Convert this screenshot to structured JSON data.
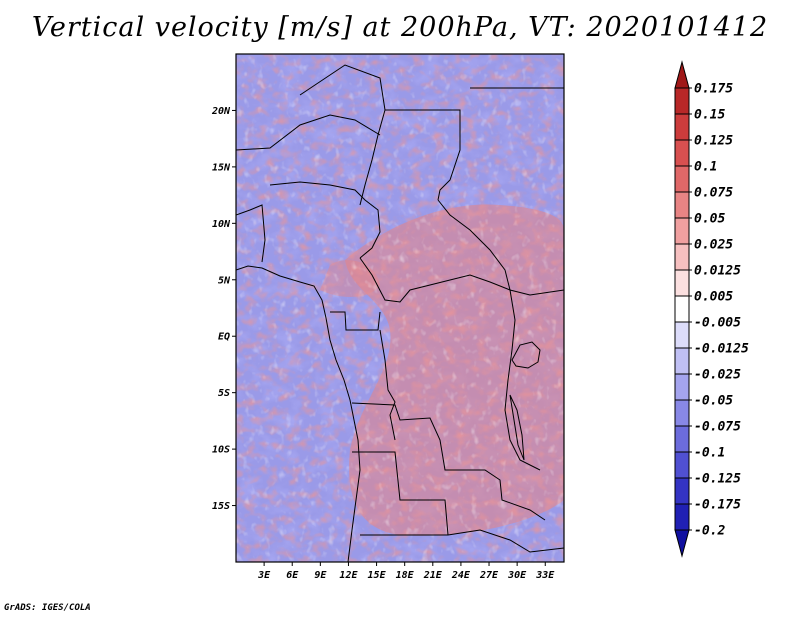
{
  "title": "Vertical velocity [m/s] at 200hPa, VT: 2020101412",
  "footer": "GrADS: IGES/COLA",
  "chart_data": {
    "type": "heatmap",
    "title": "Vertical velocity [m/s] at 200hPa, VT: 2020101412",
    "variable": "Vertical velocity",
    "units": "m/s",
    "level": "200hPa",
    "valid_time": "2020101412",
    "xlim": [
      0,
      35
    ],
    "ylim": [
      -20,
      25
    ],
    "x_ticks": [
      {
        "value": 3,
        "label": "3E"
      },
      {
        "value": 6,
        "label": "6E"
      },
      {
        "value": 9,
        "label": "9E"
      },
      {
        "value": 12,
        "label": "12E"
      },
      {
        "value": 15,
        "label": "15E"
      },
      {
        "value": 18,
        "label": "18E"
      },
      {
        "value": 21,
        "label": "21E"
      },
      {
        "value": 24,
        "label": "24E"
      },
      {
        "value": 27,
        "label": "27E"
      },
      {
        "value": 30,
        "label": "30E"
      },
      {
        "value": 33,
        "label": "33E"
      }
    ],
    "y_ticks": [
      {
        "value": 20,
        "label": "20N"
      },
      {
        "value": 15,
        "label": "15N"
      },
      {
        "value": 10,
        "label": "10N"
      },
      {
        "value": 5,
        "label": "5N"
      },
      {
        "value": 0,
        "label": "EQ"
      },
      {
        "value": -5,
        "label": "5S"
      },
      {
        "value": -10,
        "label": "10S"
      },
      {
        "value": -15,
        "label": "15S"
      }
    ],
    "colorbar": {
      "labels": [
        "0.175",
        "0.15",
        "0.125",
        "0.1",
        "0.075",
        "0.05",
        "0.025",
        "0.0125",
        "0.005",
        "-0.005",
        "-0.0125",
        "-0.025",
        "-0.05",
        "-0.075",
        "-0.1",
        "-0.125",
        "-0.175",
        "-0.2"
      ],
      "colors": [
        "#a01818",
        "#b82828",
        "#cc3c3c",
        "#d85050",
        "#e06868",
        "#e88484",
        "#f0a0a0",
        "#f6c0c0",
        "#fbe0e0",
        "#ffffff",
        "#dcdcfa",
        "#c0c0f4",
        "#a4a4ee",
        "#8888e6",
        "#6c6cdc",
        "#5050d2",
        "#3434c4",
        "#2020b4",
        "#1010a0"
      ]
    }
  }
}
